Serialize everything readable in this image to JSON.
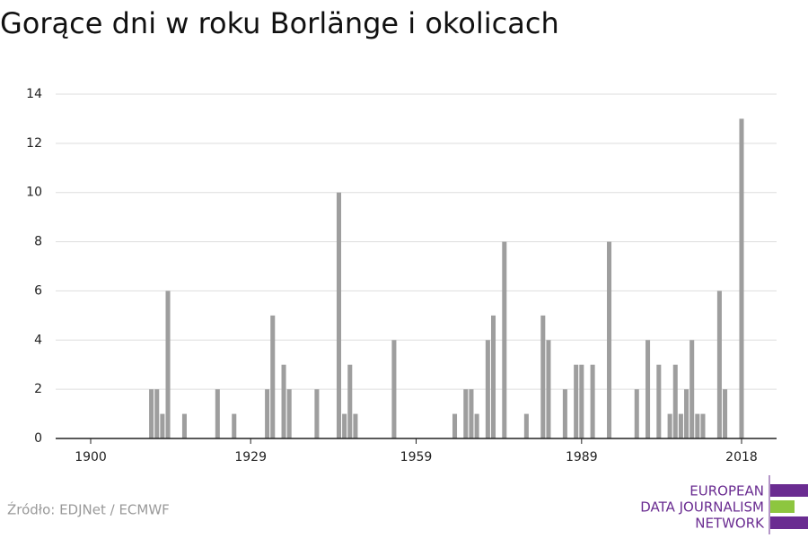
{
  "chart_data": {
    "type": "bar",
    "title": "Gorące dni w roku Borlänge i okolicach",
    "x": [
      1911,
      1912,
      1913,
      1914,
      1917,
      1923,
      1926,
      1932,
      1933,
      1935,
      1936,
      1941,
      1945,
      1946,
      1947,
      1948,
      1955,
      1966,
      1968,
      1969,
      1970,
      1972,
      1973,
      1975,
      1979,
      1982,
      1983,
      1986,
      1988,
      1989,
      1991,
      1994,
      1999,
      2001,
      2003,
      2005,
      2006,
      2007,
      2008,
      2009,
      2010,
      2011,
      2014,
      2015,
      2018
    ],
    "values": [
      2,
      2,
      1,
      6,
      1,
      2,
      1,
      2,
      5,
      3,
      2,
      2,
      10,
      1,
      3,
      1,
      4,
      1,
      2,
      2,
      1,
      4,
      5,
      8,
      1,
      5,
      4,
      2,
      3,
      3,
      3,
      8,
      2,
      4,
      3,
      1,
      3,
      1,
      2,
      4,
      1,
      1,
      6,
      2,
      13
    ],
    "color": "#9e9e9e",
    "xlim": [
      1893.65,
      2024.35
    ],
    "xticks": [
      1900,
      1929,
      1959,
      1989,
      2018
    ],
    "ylim": [
      0,
      14
    ],
    "yticks": [
      0,
      2,
      4,
      6,
      8,
      10,
      12,
      14
    ],
    "grid": true,
    "source": "Źródło: EDJNet / ECMWF",
    "logo": [
      "EUROPEAN",
      "DATA JOURNALISM",
      "NETWORK"
    ]
  }
}
